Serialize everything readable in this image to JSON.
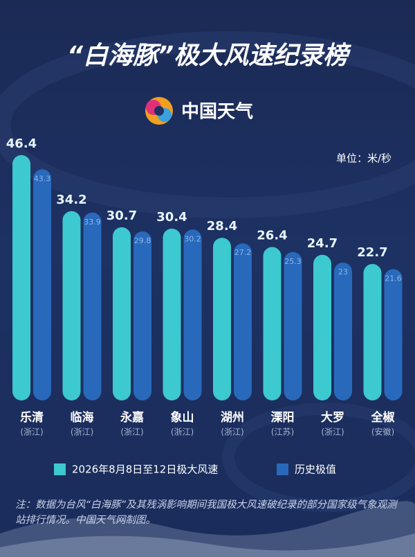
{
  "chart_data": {
    "type": "bar",
    "title": "“白海豚”极大风速纪录榜",
    "brand": "中国天气",
    "unit": "单位：米/秒",
    "categories": [
      "乐清",
      "临海",
      "永嘉",
      "象山",
      "湖州",
      "溧阳",
      "大罗",
      "全椒"
    ],
    "regions": [
      "(浙江)",
      "(浙江)",
      "(浙江)",
      "(浙江)",
      "(浙江)",
      "(江苏)",
      "(浙江)",
      "(安徽)"
    ],
    "series": [
      {
        "name": "2026年8月8日至12日极大风速",
        "color": "#3cc9cf",
        "values": [
          46.4,
          34.2,
          30.7,
          30.4,
          28.4,
          26.4,
          24.7,
          22.7
        ]
      },
      {
        "name": "历史极值",
        "color": "#2869bb",
        "values": [
          43.3,
          33.9,
          29.8,
          30.2,
          27.2,
          25.3,
          23,
          21.6
        ]
      }
    ],
    "ylim": [
      -7,
      50
    ],
    "note": "注：数据为台风“白海豚”及其残涡影响期间我国极大风速破纪录的部分国家级气象观测站排行情况。中国天气网制图。"
  }
}
